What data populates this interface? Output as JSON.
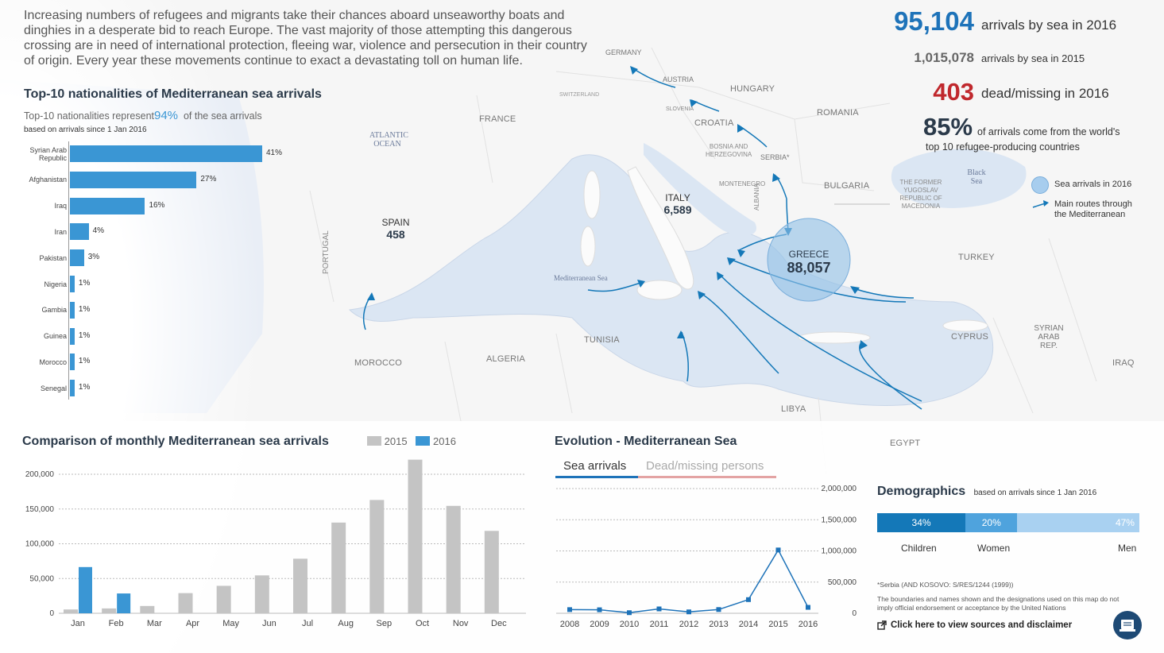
{
  "intro": "Increasing numbers of refugees and migrants take their chances aboard unseaworthy boats and dinghies in a desperate bid to reach Europe. The vast majority of those attempting this dangerous crossing are in need of international protection, fleeing war, violence and persecution in their country of origin. Every year these movements continue to exact a devastating toll on human life.",
  "stats": {
    "arrivals_2016": "95,104",
    "arrivals_2016_label": "arrivals by sea in 2016",
    "arrivals_2015": "1,015,078",
    "arrivals_2015_label": "arrivals by sea in 2015",
    "dead": "403",
    "dead_label": "dead/missing in 2016",
    "top10_pct": "85%",
    "top10_label_1": "of arrivals come from the world's",
    "top10_label_2": "top 10 refugee-producing countries"
  },
  "map": {
    "legend_circle": "Sea arrivals in 2016",
    "legend_arrow_1": "Main routes through",
    "legend_arrow_2": "the Mediterranean",
    "countries": {
      "germany": "GERMANY",
      "austria": "AUSTRIA",
      "hungary": "HUNGARY",
      "switzerland": "SWITZERLAND",
      "slovenia": "SLOVENIA",
      "croatia": "CROATIA",
      "romania": "ROMANIA",
      "france": "FRANCE",
      "bosnia_1": "BOSNIA AND",
      "bosnia_2": "HERZEGOVINA",
      "serbia": "SERBIA*",
      "montenegro": "MONTENEGRO",
      "bulgaria": "BULGARIA",
      "albania": "ALBANIA",
      "fyrom_1": "THE FORMER",
      "fyrom_2": "YUGOSLAV",
      "fyrom_3": "REPUBLIC OF",
      "fyrom_4": "MACEDONIA",
      "portugal": "PORTUGAL",
      "turkey": "TURKEY",
      "tunisia": "TUNISIA",
      "algeria": "ALGERIA",
      "morocco": "MOROCCO",
      "libya": "LIBYA",
      "egypt": "EGYPT",
      "cyprus": "CYPRUS",
      "syria_1": "SYRIAN",
      "syria_2": "ARAB",
      "syria_3": "REP.",
      "iraq": "IRAQ"
    },
    "seas": {
      "atlantic_1": "ATLANTIC",
      "atlantic_2": "OCEAN",
      "black_1": "Black",
      "black_2": "Sea",
      "med": "Mediterranean Sea"
    },
    "arrivals": {
      "spain_name": "SPAIN",
      "spain_value": "458",
      "italy_name": "ITALY",
      "italy_value": "6,589",
      "greece_name": "GREECE",
      "greece_value": "88,057"
    }
  },
  "nationalities": {
    "title": "Top-10 nationalities of Mediterranean sea arrivals",
    "subtitle_pre": "Top-10 nationalities represent",
    "subtitle_pct": "94%",
    "subtitle_post": "of the sea arrivals",
    "note": "based on arrivals since 1 Jan 2016"
  },
  "monthly": {
    "title": "Comparison of monthly Mediterranean sea arrivals",
    "legend_2015": "2015",
    "legend_2016": "2016"
  },
  "evolution": {
    "title": "Evolution - Mediterranean Sea",
    "tab_active": "Sea arrivals",
    "tab_inactive": "Dead/missing persons"
  },
  "demographics": {
    "title": "Demographics",
    "note": "based on arrivals since 1 Jan 2016",
    "children_pct": "34%",
    "women_pct": "20%",
    "men_pct": "47%",
    "children": "Children",
    "women": "Women",
    "men": "Men",
    "children_share": 34,
    "women_share": 20,
    "men_share": 47
  },
  "footnotes": {
    "serbia": "*Serbia (AND KOSOVO: S/RES/1244 (1999))",
    "boundaries_1": "The boundaries and names shown and the designations used on this map do not",
    "boundaries_2": "imply official endorsement or acceptance by the United Nations",
    "sources_link": "Click here to view sources and disclaimer"
  },
  "colors": {
    "blue": "#3a96d4",
    "gray": "#c4c4c4",
    "red": "#c0282d",
    "navy": "#2b3a4a",
    "sea": "#dbe6f3"
  },
  "icons": {
    "external_link": "external-link-icon",
    "book": "book-icon"
  },
  "chart_data": [
    {
      "type": "bar",
      "title": "Top-10 nationalities of Mediterranean sea arrivals",
      "categories": [
        "Syrian Arab Republic",
        "Afghanistan",
        "Iraq",
        "Iran",
        "Pakistan",
        "Nigeria",
        "Gambia",
        "Guinea",
        "Morocco",
        "Senegal"
      ],
      "values": [
        41,
        27,
        16,
        4,
        3,
        1,
        1,
        1,
        1,
        1
      ],
      "value_labels": [
        "41%",
        "27%",
        "16%",
        "4%",
        "3%",
        "1%",
        "1%",
        "1%",
        "1%",
        "1%"
      ],
      "orientation": "horizontal"
    },
    {
      "type": "bar",
      "title": "Comparison of monthly Mediterranean sea arrivals",
      "categories": [
        "Jan",
        "Feb",
        "Mar",
        "Apr",
        "May",
        "Jun",
        "Jul",
        "Aug",
        "Sep",
        "Oct",
        "Nov",
        "Dec"
      ],
      "series": [
        {
          "name": "2015",
          "values": [
            5500,
            7000,
            10500,
            29000,
            39500,
            54500,
            78500,
            130500,
            163000,
            221000,
            154500,
            118500
          ]
        },
        {
          "name": "2016",
          "values": [
            66500,
            28500,
            null,
            null,
            null,
            null,
            null,
            null,
            null,
            null,
            null,
            null
          ]
        }
      ],
      "ylim": [
        0,
        225000
      ],
      "yticks": [
        "0",
        "50,000",
        "100,000",
        "150,000",
        "200,000"
      ],
      "ytick_values": [
        0,
        50000,
        100000,
        150000,
        200000
      ],
      "grid": true,
      "legend": "top"
    },
    {
      "type": "line",
      "title": "Evolution - Mediterranean Sea",
      "x": [
        "2008",
        "2009",
        "2010",
        "2011",
        "2012",
        "2013",
        "2014",
        "2015",
        "2016"
      ],
      "values": [
        59000,
        56000,
        9700,
        70000,
        22500,
        60000,
        219000,
        1015078,
        95104
      ],
      "ylim": [
        0,
        2000000
      ],
      "yticks": [
        "0",
        "500,000",
        "1,000,000",
        "1,500,000",
        "2,000,000"
      ],
      "ytick_values": [
        0,
        500000,
        1000000,
        1500000,
        2000000
      ],
      "grid": true
    }
  ]
}
